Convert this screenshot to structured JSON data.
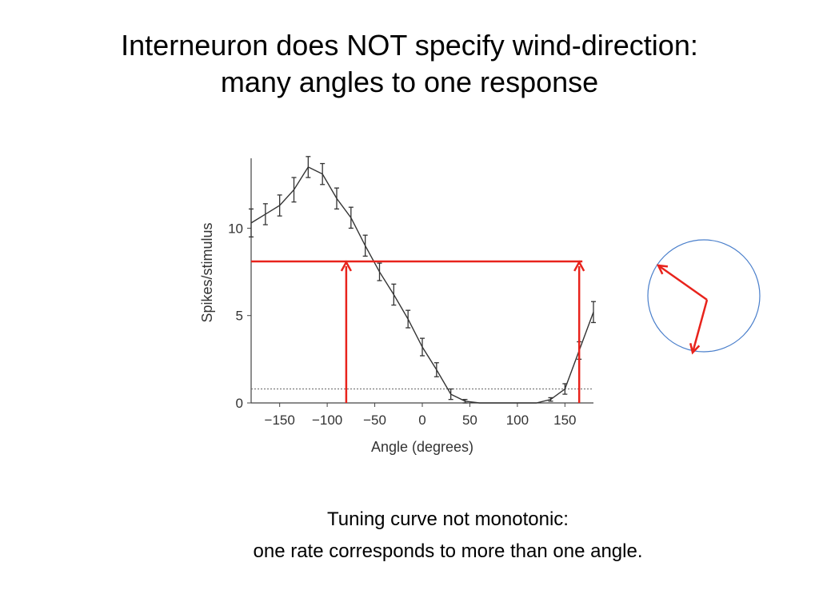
{
  "slide": {
    "title_lines": [
      "Interneuron does NOT specify wind-direction:",
      "many angles to one response"
    ],
    "caption_lines": [
      "Tuning curve not monotonic:",
      "one rate corresponds to more than one angle."
    ]
  },
  "chart_data": {
    "type": "line",
    "xlabel": "Angle (degrees)",
    "ylabel": "Spikes/stimulus",
    "xlim": [
      -180,
      180
    ],
    "ylim": [
      0,
      14
    ],
    "x_ticks": [
      -150,
      -100,
      -50,
      0,
      50,
      100,
      150
    ],
    "x_tick_labels": [
      "−150",
      "−100",
      "−50",
      "0",
      "50",
      "100",
      "150"
    ],
    "y_ticks": [
      0,
      5,
      10
    ],
    "y_tick_labels": [
      "0",
      "5",
      "10"
    ],
    "grid": false,
    "legend": "none",
    "baseline": 0.8,
    "series": [
      {
        "x": [
          -180,
          -165,
          -150,
          -135,
          -120,
          -105,
          -90,
          -75,
          -60,
          -45,
          -30,
          -15,
          0,
          15,
          30,
          45,
          60,
          75,
          90,
          105,
          120,
          135,
          150,
          165,
          180
        ],
        "y": [
          10.3,
          10.8,
          11.3,
          12.2,
          13.5,
          13.1,
          11.7,
          10.6,
          9.0,
          7.5,
          6.2,
          4.8,
          3.2,
          1.9,
          0.5,
          0.1,
          0.0,
          0.0,
          0.0,
          0.0,
          0.0,
          0.2,
          0.8,
          3.0,
          5.2
        ],
        "err": [
          0.8,
          0.6,
          0.6,
          0.7,
          0.6,
          0.6,
          0.6,
          0.6,
          0.6,
          0.5,
          0.6,
          0.5,
          0.5,
          0.4,
          0.3,
          0.1,
          0.0,
          0.0,
          0.0,
          0.0,
          0.0,
          0.1,
          0.3,
          0.5,
          0.6
        ],
        "color": "#333333"
      }
    ],
    "annotation": {
      "level": 8.1,
      "angles": [
        -80,
        165
      ],
      "color": "#e8231c"
    }
  },
  "direction_diagram": {
    "circle_color": "#4a7fcb",
    "arrow_color": "#e8231c"
  }
}
